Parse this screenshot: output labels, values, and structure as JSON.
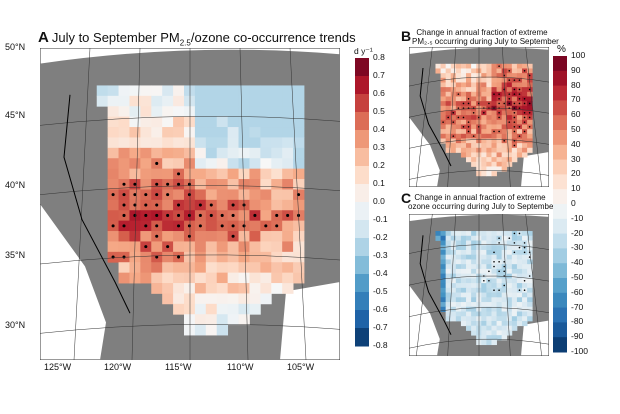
{
  "panel_a": {
    "letter": "A",
    "title_pre": "July to September PM",
    "title_sub": "2.5",
    "title_post": "/ozone co-occurrence trends",
    "unit": "d y⁻¹",
    "colorbar_ticks": [
      "0.8",
      "0.7",
      "0.6",
      "0.5",
      "0.4",
      "0.3",
      "0.2",
      "0.1",
      "0.0",
      "-0.1",
      "-0.2",
      "-0.3",
      "-0.4",
      "-0.5",
      "-0.6",
      "-0.7",
      "-0.8"
    ],
    "lat_labels": [
      "50°N",
      "45°N",
      "40°N",
      "35°N",
      "30°N"
    ],
    "lon_labels": [
      "125°W",
      "120°W",
      "115°W",
      "110°W",
      "105°W"
    ]
  },
  "panel_b": {
    "letter": "B",
    "title_line1": "Change in annual fraction of extreme",
    "title_line2": "PM₂.₅ occurring during July to September"
  },
  "panel_c": {
    "letter": "C",
    "title_line1": "Change in annual fraction of extreme",
    "title_line2": "ozone occurring during July to September"
  },
  "shared_colorbar": {
    "unit": "%",
    "ticks": [
      "100",
      "90",
      "80",
      "70",
      "60",
      "50",
      "40",
      "30",
      "20",
      "10",
      "0",
      "-10",
      "-20",
      "-30",
      "-40",
      "-50",
      "-60",
      "-70",
      "-80",
      "-90",
      "-100"
    ]
  },
  "colors": {
    "positive": "#67001f",
    "neutral": "#f7f7f7",
    "negative": "#053061",
    "land_outside": "#808080"
  }
}
